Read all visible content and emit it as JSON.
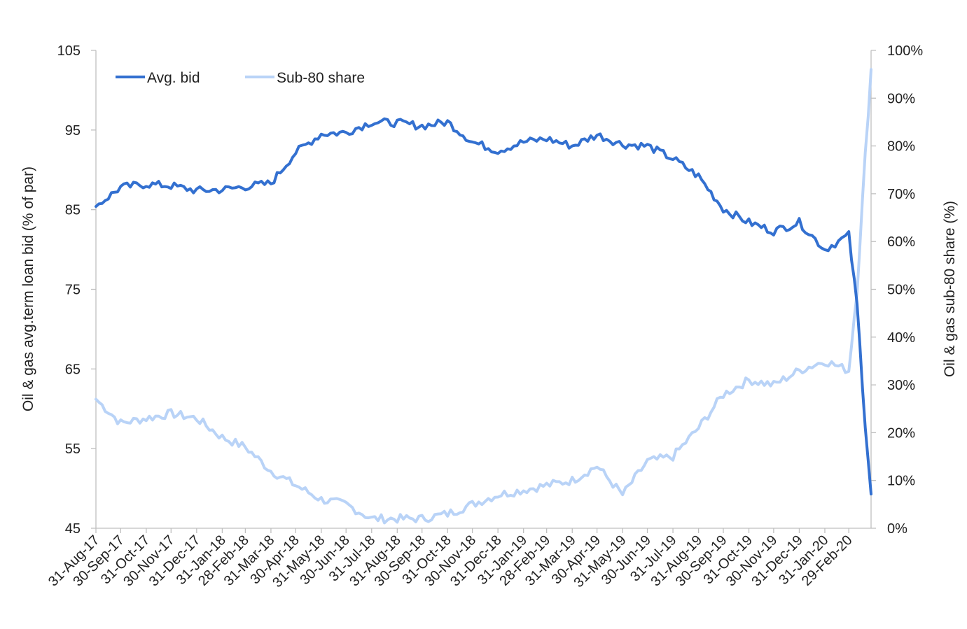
{
  "chart_data": {
    "type": "line",
    "title": "",
    "xlabel": "",
    "ylabel": "Oil & gas avg.term loan  bid (% of par)",
    "y2label": "Oil & gas sub-80 share (%)",
    "ylim": [
      45,
      105
    ],
    "y2lim": [
      0,
      100
    ],
    "yticks": [
      "45",
      "55",
      "65",
      "75",
      "85",
      "95",
      "105"
    ],
    "y2ticks": [
      "0%",
      "10%",
      "20%",
      "30%",
      "40%",
      "50%",
      "60%",
      "70%",
      "80%",
      "90%",
      "100%"
    ],
    "xticks": [
      "31-Aug-17",
      "30-Sep-17",
      "31-Oct-17",
      "30-Nov-17",
      "31-Dec-17",
      "31-Jan-18",
      "28-Feb-18",
      "31-Mar-18",
      "30-Apr-18",
      "31-May-18",
      "30-Jun-18",
      "31-Jul-18",
      "31-Aug-18",
      "30-Sep-18",
      "31-Oct-18",
      "30-Nov-18",
      "31-Dec-18",
      "31-Jan-19",
      "28-Feb-19",
      "31-Mar-19",
      "30-Apr-19",
      "31-May-19",
      "30-Jun-19",
      "31-Jul-19",
      "31-Aug-19",
      "30-Sep-19",
      "31-Oct-19",
      "30-Nov-19",
      "31-Dec-19",
      "31-Jan-20",
      "29-Feb-20"
    ],
    "legend_position": "top-left",
    "grid": false,
    "x": [
      "2017-08-31",
      "2017-09-30",
      "2017-10-31",
      "2017-11-30",
      "2017-12-31",
      "2018-01-31",
      "2018-02-28",
      "2018-03-31",
      "2018-04-30",
      "2018-05-31",
      "2018-06-30",
      "2018-07-31",
      "2018-08-31",
      "2018-09-30",
      "2018-10-31",
      "2018-11-30",
      "2018-12-31",
      "2019-01-31",
      "2019-02-28",
      "2019-03-31",
      "2019-04-30",
      "2019-05-31",
      "2019-06-30",
      "2019-07-31",
      "2019-08-31",
      "2019-09-30",
      "2019-10-31",
      "2019-11-30",
      "2019-12-31",
      "2020-01-31",
      "2020-02-29",
      "2020-03-10",
      "2020-03-20",
      "2020-03-27"
    ],
    "series": [
      {
        "name": "Avg. bid",
        "axis": "left",
        "color": "#3370d0",
        "values": [
          85.4,
          87.8,
          88.2,
          88.0,
          87.4,
          87.5,
          87.9,
          88.3,
          92.2,
          94.5,
          94.7,
          96.0,
          95.9,
          95.5,
          96.0,
          93.5,
          92.4,
          93.5,
          93.9,
          93.0,
          94.4,
          93.2,
          93.0,
          91.4,
          89.2,
          85.1,
          83.4,
          82.3,
          83.4,
          80.0,
          81.8,
          73.0,
          58.0,
          49.3
        ]
      },
      {
        "name": "Sub-80 share",
        "axis": "right",
        "color": "#b9d3f7",
        "values": [
          27,
          22,
          23,
          24,
          23,
          19,
          17,
          12,
          9,
          6,
          5,
          2,
          2,
          2,
          3,
          5,
          7,
          8,
          9,
          10,
          13,
          7,
          14,
          15,
          21,
          28,
          31,
          30,
          33,
          35,
          33,
          50,
          78,
          96
        ]
      }
    ]
  }
}
